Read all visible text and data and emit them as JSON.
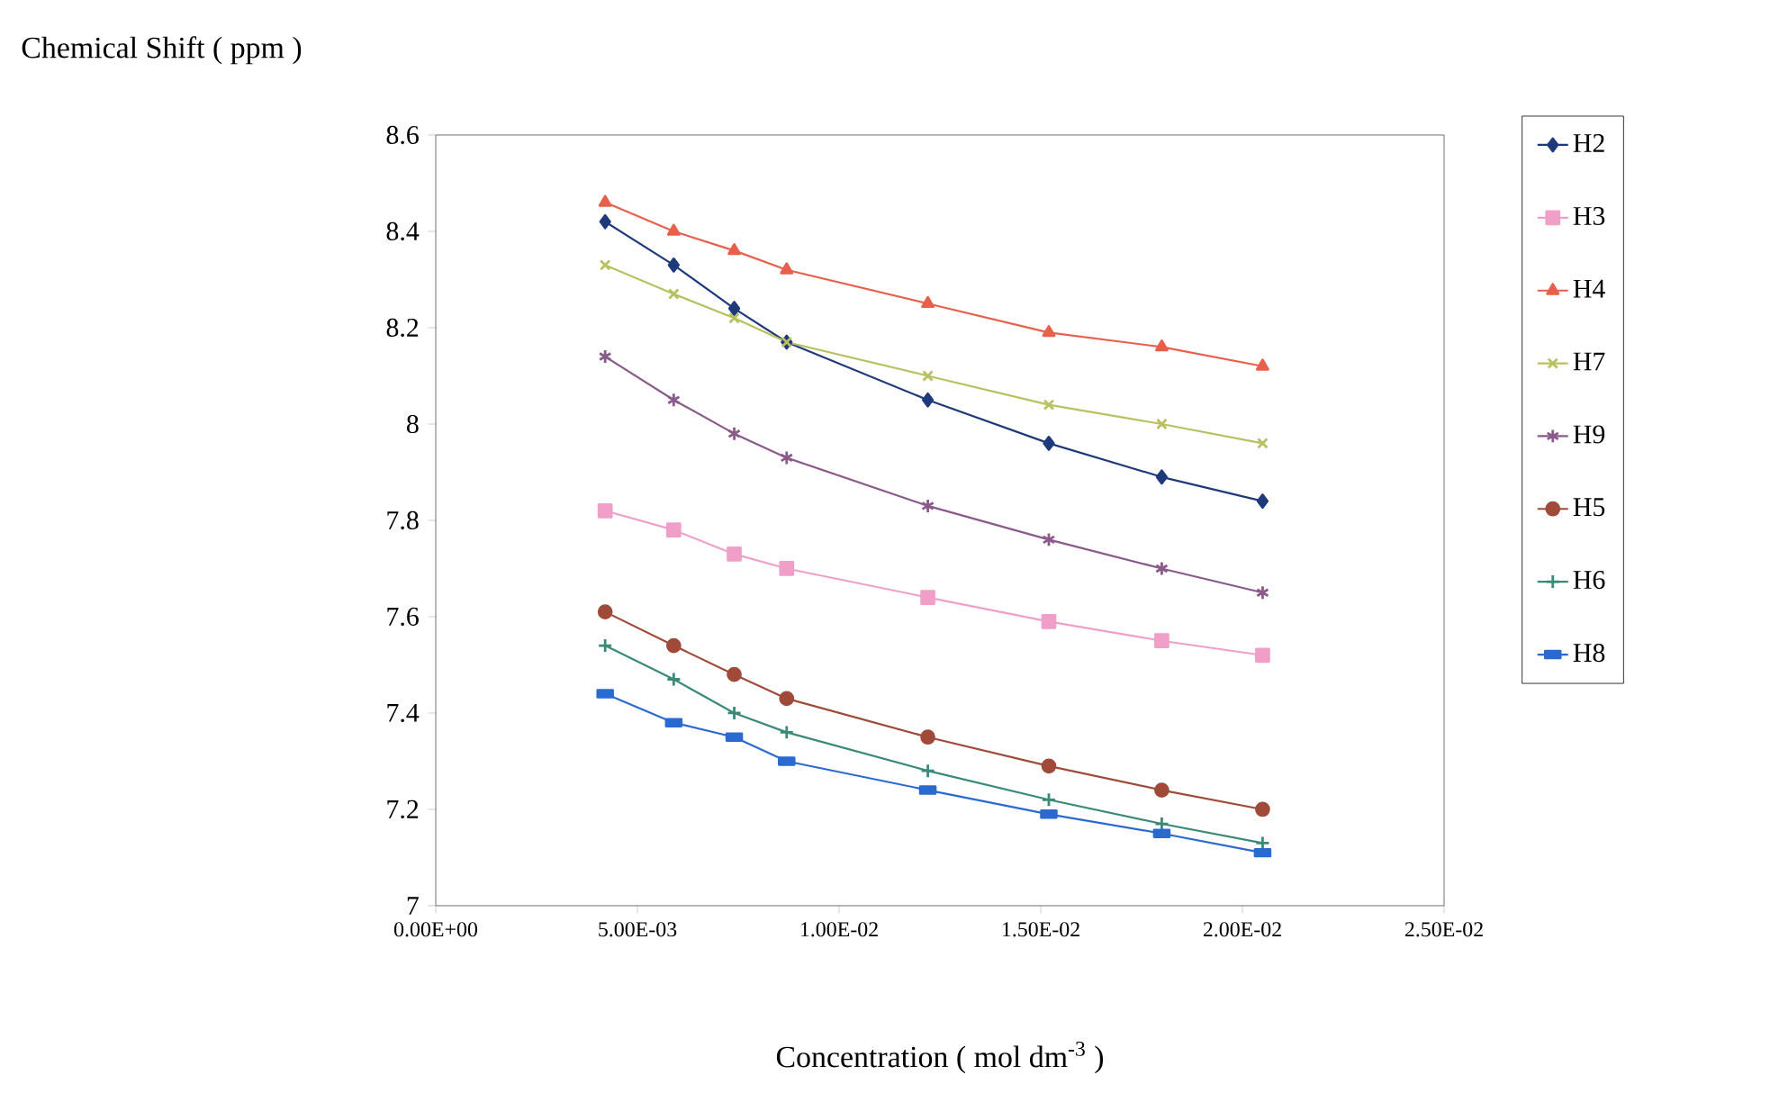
{
  "chart_data": {
    "type": "line",
    "xlabel": "Concentration ( mol dm$^{-3}$ )",
    "ylabel": "Chemical Shift ( ppm )",
    "x": [
      0.0042,
      0.0059,
      0.0074,
      0.0087,
      0.0122,
      0.0152,
      0.018,
      0.0205
    ],
    "xlim": [
      0,
      0.025
    ],
    "xticks": [
      {
        "value": 0,
        "label": "0.00E+00"
      },
      {
        "value": 0.005,
        "label": "5.00E-03"
      },
      {
        "value": 0.01,
        "label": "1.00E-02"
      },
      {
        "value": 0.015,
        "label": "1.50E-02"
      },
      {
        "value": 0.02,
        "label": "2.00E-02"
      },
      {
        "value": 0.025,
        "label": "2.50E-02"
      }
    ],
    "ylim": [
      7,
      8.6
    ],
    "yticks": [
      7,
      7.2,
      7.4,
      7.6,
      7.8,
      8,
      8.2,
      8.4,
      8.6
    ],
    "legend": "right",
    "grid": false,
    "line_style": "solid",
    "series": [
      {
        "name": "H2",
        "color": "#1f3a7a",
        "marker": "diamond",
        "values": [
          8.42,
          8.33,
          8.24,
          8.17,
          8.05,
          7.96,
          7.89,
          7.84
        ]
      },
      {
        "name": "H3",
        "color": "#f0a0c8",
        "marker": "square",
        "values": [
          7.82,
          7.78,
          7.73,
          7.7,
          7.64,
          7.59,
          7.55,
          7.52
        ]
      },
      {
        "name": "H4",
        "color": "#e8604c",
        "marker": "triangle",
        "values": [
          8.46,
          8.4,
          8.36,
          8.32,
          8.25,
          8.19,
          8.16,
          8.12
        ]
      },
      {
        "name": "H7",
        "color": "#b8c060",
        "marker": "cross",
        "values": [
          8.33,
          8.27,
          8.22,
          8.17,
          8.1,
          8.04,
          8.0,
          7.96
        ]
      },
      {
        "name": "H9",
        "color": "#8a5a8a",
        "marker": "cross",
        "values": [
          8.14,
          8.05,
          7.98,
          7.93,
          7.83,
          7.76,
          7.7,
          7.65
        ]
      },
      {
        "name": "H5",
        "color": "#a04a3a",
        "marker": "circle",
        "values": [
          7.61,
          7.54,
          7.48,
          7.43,
          7.35,
          7.29,
          7.24,
          7.2
        ]
      },
      {
        "name": "H6",
        "color": "#3a8a7a",
        "marker": "plus",
        "values": [
          7.54,
          7.47,
          7.4,
          7.36,
          7.28,
          7.22,
          7.17,
          7.13
        ]
      },
      {
        "name": "H8",
        "color": "#2a6ad0",
        "marker": "square",
        "values": [
          7.44,
          7.38,
          7.35,
          7.3,
          7.24,
          7.19,
          7.15,
          7.11
        ]
      }
    ]
  }
}
